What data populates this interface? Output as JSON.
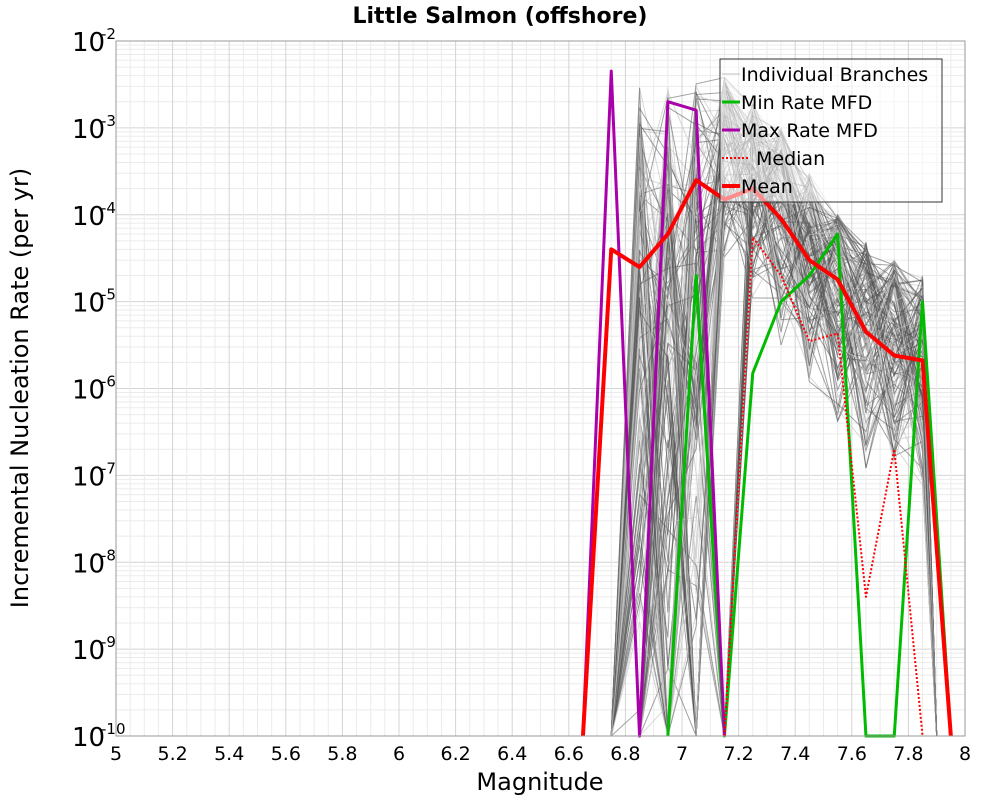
{
  "chart_data": {
    "type": "line",
    "title": "Little Salmon (offshore)",
    "xlabel": "Magnitude",
    "ylabel": "Incremental Nucleation Rate (per yr)",
    "xlim": [
      5,
      8
    ],
    "ylim": [
      1e-10,
      0.01
    ],
    "yscale": "log",
    "grid": true,
    "legend_position": "top-right",
    "x_ticks": [
      "5",
      "5.2",
      "5.4",
      "5.6",
      "5.8",
      "6",
      "6.2",
      "6.4",
      "6.6",
      "6.8",
      "7",
      "7.2",
      "7.4",
      "7.6",
      "7.8",
      "8"
    ],
    "y_ticks": [
      {
        "base": "10",
        "exp": "-10"
      },
      {
        "base": "10",
        "exp": "-9"
      },
      {
        "base": "10",
        "exp": "-8"
      },
      {
        "base": "10",
        "exp": "-7"
      },
      {
        "base": "10",
        "exp": "-6"
      },
      {
        "base": "10",
        "exp": "-5"
      },
      {
        "base": "10",
        "exp": "-4"
      },
      {
        "base": "10",
        "exp": "-3"
      },
      {
        "base": "10",
        "exp": "-2"
      }
    ],
    "series": [
      {
        "name": "Individual Branches",
        "color": "#555555",
        "style": "solid",
        "note_visual": "many overlapping branch curves",
        "band_min": [
          [
            6.75,
            1e-10
          ],
          [
            6.85,
            1e-10
          ],
          [
            6.95,
            1e-10
          ],
          [
            7.05,
            1e-10
          ],
          [
            7.15,
            2e-05
          ],
          [
            7.25,
            1e-05
          ],
          [
            7.35,
            3e-06
          ],
          [
            7.45,
            1e-06
          ],
          [
            7.55,
            3e-07
          ],
          [
            7.65,
            1e-07
          ],
          [
            7.75,
            1e-07
          ],
          [
            7.85,
            5e-08
          ]
        ],
        "band_max": [
          [
            6.85,
            0.003
          ],
          [
            6.95,
            0.003
          ],
          [
            7.05,
            0.004
          ],
          [
            7.15,
            0.004
          ],
          [
            7.25,
            0.002
          ],
          [
            7.35,
            0.001
          ],
          [
            7.45,
            0.0003
          ],
          [
            7.55,
            0.0001
          ],
          [
            7.65,
            5e-05
          ],
          [
            7.75,
            3e-05
          ],
          [
            7.85,
            2e-05
          ]
        ]
      },
      {
        "name": "Min Rate MFD",
        "color": "#00bb00",
        "style": "solid",
        "points": [
          [
            6.95,
            1e-10
          ],
          [
            7.05,
            2e-05
          ],
          [
            7.15,
            1e-10
          ],
          [
            7.25,
            1.5e-06
          ],
          [
            7.35,
            1e-05
          ],
          [
            7.45,
            2e-05
          ],
          [
            7.55,
            6e-05
          ],
          [
            7.65,
            1e-10
          ],
          [
            7.75,
            1e-10
          ],
          [
            7.85,
            1e-05
          ],
          [
            7.95,
            1e-10
          ]
        ]
      },
      {
        "name": "Max Rate MFD",
        "color": "#aa00aa",
        "style": "solid",
        "points": [
          [
            6.65,
            1e-10
          ],
          [
            6.75,
            0.0045
          ],
          [
            6.85,
            1e-10
          ],
          [
            6.95,
            0.002
          ],
          [
            7.05,
            0.0016
          ],
          [
            7.15,
            1e-10
          ]
        ]
      },
      {
        "name": "Median",
        "color": "#ff0000",
        "style": "dotted",
        "points": [
          [
            7.15,
            1e-10
          ],
          [
            7.25,
            5.5e-05
          ],
          [
            7.35,
            2e-05
          ],
          [
            7.45,
            3.5e-06
          ],
          [
            7.55,
            4.3e-06
          ],
          [
            7.65,
            4e-09
          ],
          [
            7.75,
            2e-07
          ],
          [
            7.85,
            1e-10
          ]
        ]
      },
      {
        "name": "Mean",
        "color": "#ff0000",
        "style": "solid",
        "points": [
          [
            6.65,
            1e-10
          ],
          [
            6.75,
            4e-05
          ],
          [
            6.85,
            2.5e-05
          ],
          [
            6.95,
            6e-05
          ],
          [
            7.05,
            0.00025
          ],
          [
            7.15,
            0.00015
          ],
          [
            7.25,
            0.0002
          ],
          [
            7.35,
            9e-05
          ],
          [
            7.45,
            3e-05
          ],
          [
            7.55,
            1.8e-05
          ],
          [
            7.65,
            4.5e-06
          ],
          [
            7.75,
            2.4e-06
          ],
          [
            7.85,
            2.1e-06
          ],
          [
            7.95,
            1e-10
          ]
        ]
      }
    ]
  }
}
